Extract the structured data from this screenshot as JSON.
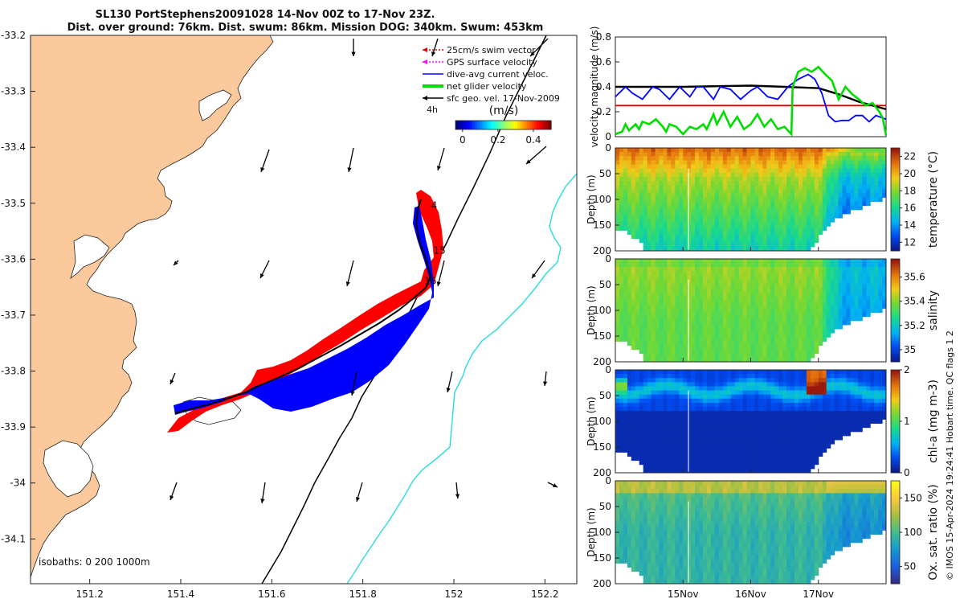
{
  "title": {
    "line1": "SL130 PortStephens20091028 14-Nov 00Z to 17-Nov 23Z.",
    "line2": "Dist. over ground: 76km. Dist. swum: 86km. Mission DOG: 340km. Swum: 453km"
  },
  "colors": {
    "land": "#fbc99b",
    "track_red": "#ff0000",
    "track_blue": "#0000ff",
    "isobath_1000": "#33dddd",
    "shelf_line": "#000000",
    "net_glider": "#00dd00",
    "swim_ref": "#dd0000",
    "sfc_geo": "#000000"
  },
  "map": {
    "xlim": [
      151.07,
      152.27
    ],
    "ylim": [
      -34.18,
      -33.2
    ],
    "x_ticks": [
      151.2,
      151.4,
      151.6,
      151.8,
      152,
      152.2
    ],
    "x_tick_labels": [
      "151.2",
      "151.4",
      "151.6",
      "151.8",
      "152",
      "152.2"
    ],
    "y_ticks": [
      -33.2,
      -33.3,
      -33.4,
      -33.5,
      -33.6,
      -33.7,
      -33.8,
      -33.9,
      -34,
      -34.1
    ],
    "y_tick_labels": [
      "-33.2",
      "-33.3",
      "-33.4",
      "-33.5",
      "-33.6",
      "-33.7",
      "-33.8",
      "-33.9",
      "-34",
      "-34.1"
    ],
    "legend": [
      {
        "label": "25cm/s swim vector",
        "color": "#dd0000",
        "style": "dotted-arrow"
      },
      {
        "label": "GPS surface velocity",
        "color": "#ff00ff",
        "style": "dotted-arrow"
      },
      {
        "label": "dive-avg current veloc.",
        "color": "#0000ff",
        "style": "line"
      },
      {
        "label": "net glider velocity",
        "color": "#00dd00",
        "style": "thick-line"
      },
      {
        "label": "sfc geo. vel. 17-Nov-2009",
        "color": "#000000",
        "style": "arrow"
      }
    ],
    "legend_extra": "4h",
    "colorbar": {
      "label": "(m/s)",
      "ticks": [
        0,
        0.2,
        0.4
      ],
      "tick_labels": [
        "0",
        "0.2",
        "0.4"
      ],
      "range": [
        -0.04,
        0.5
      ]
    },
    "isobath_label": "isobaths: 0   200  1000m",
    "day_labels": [
      {
        "text": "4",
        "lon": 151.95,
        "lat": -33.51
      },
      {
        "text": "15",
        "lon": 151.955,
        "lat": -33.59
      },
      {
        "text": "16",
        "lon": 151.935,
        "lat": -33.645
      }
    ]
  },
  "chart_data": [
    {
      "type": "line",
      "title": "",
      "xlabel": "",
      "ylabel": "velocity magnitude (m/s)",
      "ylim": [
        0,
        0.8
      ],
      "yticks": [
        0,
        0.2,
        0.4,
        0.6,
        0.8
      ],
      "tick_labels": [
        "0",
        "0.2",
        "0.4",
        "0.6",
        "0.8"
      ],
      "xlim_days": [
        14.0,
        18.0
      ],
      "series": [
        {
          "name": "25cm/s swim vector",
          "color": "#dd0000",
          "x": [
            14.0,
            18.0
          ],
          "values": [
            0.25,
            0.25
          ]
        },
        {
          "name": "sfc geo. vel.",
          "color": "#000000",
          "x": [
            14.0,
            14.5,
            15.0,
            15.5,
            16.0,
            16.5,
            17.0,
            17.3,
            17.6,
            18.0
          ],
          "values": [
            0.4,
            0.4,
            0.4,
            0.405,
            0.41,
            0.4,
            0.39,
            0.34,
            0.28,
            0.22
          ]
        },
        {
          "name": "dive-avg current veloc.",
          "color": "#0000ff",
          "x": [
            14.0,
            14.15,
            14.25,
            14.4,
            14.55,
            14.65,
            14.8,
            14.95,
            15.1,
            15.2,
            15.3,
            15.45,
            15.55,
            15.7,
            15.85,
            16.0,
            16.1,
            16.25,
            16.4,
            16.55,
            16.7,
            16.85,
            16.95,
            17.05,
            17.15,
            17.25,
            17.35,
            17.45,
            17.55,
            17.65,
            17.75,
            17.85,
            18.0
          ],
          "values": [
            0.32,
            0.4,
            0.35,
            0.3,
            0.4,
            0.38,
            0.3,
            0.4,
            0.32,
            0.4,
            0.4,
            0.3,
            0.4,
            0.38,
            0.3,
            0.37,
            0.4,
            0.32,
            0.3,
            0.4,
            0.46,
            0.5,
            0.46,
            0.35,
            0.17,
            0.12,
            0.13,
            0.13,
            0.17,
            0.17,
            0.12,
            0.17,
            0.14
          ]
        },
        {
          "name": "net glider velocity",
          "color": "#00dd00",
          "x": [
            14.0,
            14.1,
            14.15,
            14.2,
            14.3,
            14.35,
            14.4,
            14.5,
            14.6,
            14.7,
            14.75,
            14.8,
            14.9,
            15.0,
            15.1,
            15.2,
            15.3,
            15.35,
            15.45,
            15.5,
            15.6,
            15.7,
            15.8,
            15.9,
            16.0,
            16.1,
            16.2,
            16.3,
            16.4,
            16.5,
            16.6,
            16.62,
            16.7,
            16.8,
            16.9,
            17.0,
            17.1,
            17.2,
            17.3,
            17.4,
            17.5,
            17.6,
            17.7,
            17.8,
            17.9,
            17.95,
            18.0
          ],
          "values": [
            0.02,
            0.04,
            0.1,
            0.05,
            0.1,
            0.06,
            0.12,
            0.1,
            0.14,
            0.08,
            0.04,
            0.1,
            0.08,
            0.02,
            0.08,
            0.06,
            0.1,
            0.06,
            0.18,
            0.1,
            0.2,
            0.08,
            0.16,
            0.06,
            0.1,
            0.18,
            0.08,
            0.14,
            0.06,
            0.08,
            0.02,
            0.4,
            0.52,
            0.55,
            0.52,
            0.56,
            0.5,
            0.45,
            0.3,
            0.4,
            0.34,
            0.3,
            0.25,
            0.27,
            0.2,
            0.15,
            0.01
          ]
        }
      ]
    },
    {
      "type": "heatmap",
      "variable": "temperature",
      "colorbar_label": "temperature (°C)",
      "ylabel": "Depth (m)",
      "ylim": [
        0,
        200
      ],
      "yticks": [
        0,
        50,
        100,
        150,
        200
      ],
      "tick_labels": [
        "0",
        "50",
        "100",
        "150",
        "200"
      ],
      "clim": [
        11,
        23
      ],
      "cticks": [
        12,
        14,
        16,
        18,
        20,
        22
      ],
      "ctick_labels": [
        "12",
        "14",
        "16",
        "18",
        "20",
        "22"
      ]
    },
    {
      "type": "heatmap",
      "variable": "salinity",
      "colorbar_label": "salinity",
      "ylabel": "Depth (m)",
      "ylim": [
        0,
        200
      ],
      "yticks": [
        0,
        50,
        100,
        150,
        200
      ],
      "tick_labels": [
        "0",
        "50",
        "100",
        "150",
        "200"
      ],
      "clim": [
        34.9,
        35.75
      ],
      "cticks": [
        35,
        35.2,
        35.4,
        35.6
      ],
      "ctick_labels": [
        "35",
        "35.2",
        "35.4",
        "35.6"
      ]
    },
    {
      "type": "heatmap",
      "variable": "chl-a",
      "colorbar_label": "chl-a (mg m-3)",
      "ylabel": "Depth (m)",
      "ylim": [
        0,
        200
      ],
      "yticks": [
        0,
        50,
        100,
        150,
        200
      ],
      "tick_labels": [
        "0",
        "50",
        "100",
        "150",
        "200"
      ],
      "clim": [
        0,
        2
      ],
      "cticks": [
        0,
        1,
        2
      ],
      "ctick_labels": [
        "0",
        "1",
        "2"
      ]
    },
    {
      "type": "heatmap",
      "variable": "oxygen",
      "colorbar_label": "Ox. sat. ratio (%)",
      "ylabel": "Depth (m)",
      "ylim": [
        0,
        200
      ],
      "yticks": [
        0,
        50,
        100,
        150,
        200
      ],
      "tick_labels": [
        "0",
        "50",
        "100",
        "150",
        "200"
      ],
      "clim": [
        25,
        175
      ],
      "cticks": [
        50,
        100,
        150
      ],
      "ctick_labels": [
        "50",
        "100",
        "150"
      ],
      "x_ticks_days": [
        15.0,
        16.0,
        17.0
      ],
      "x_tick_labels": [
        "15Nov",
        "16Nov",
        "17Nov"
      ]
    }
  ],
  "footer": {
    "credit": "© IMOS 15-Apr-2024 19:24:41 Hobart time. QC flags 1  2"
  }
}
